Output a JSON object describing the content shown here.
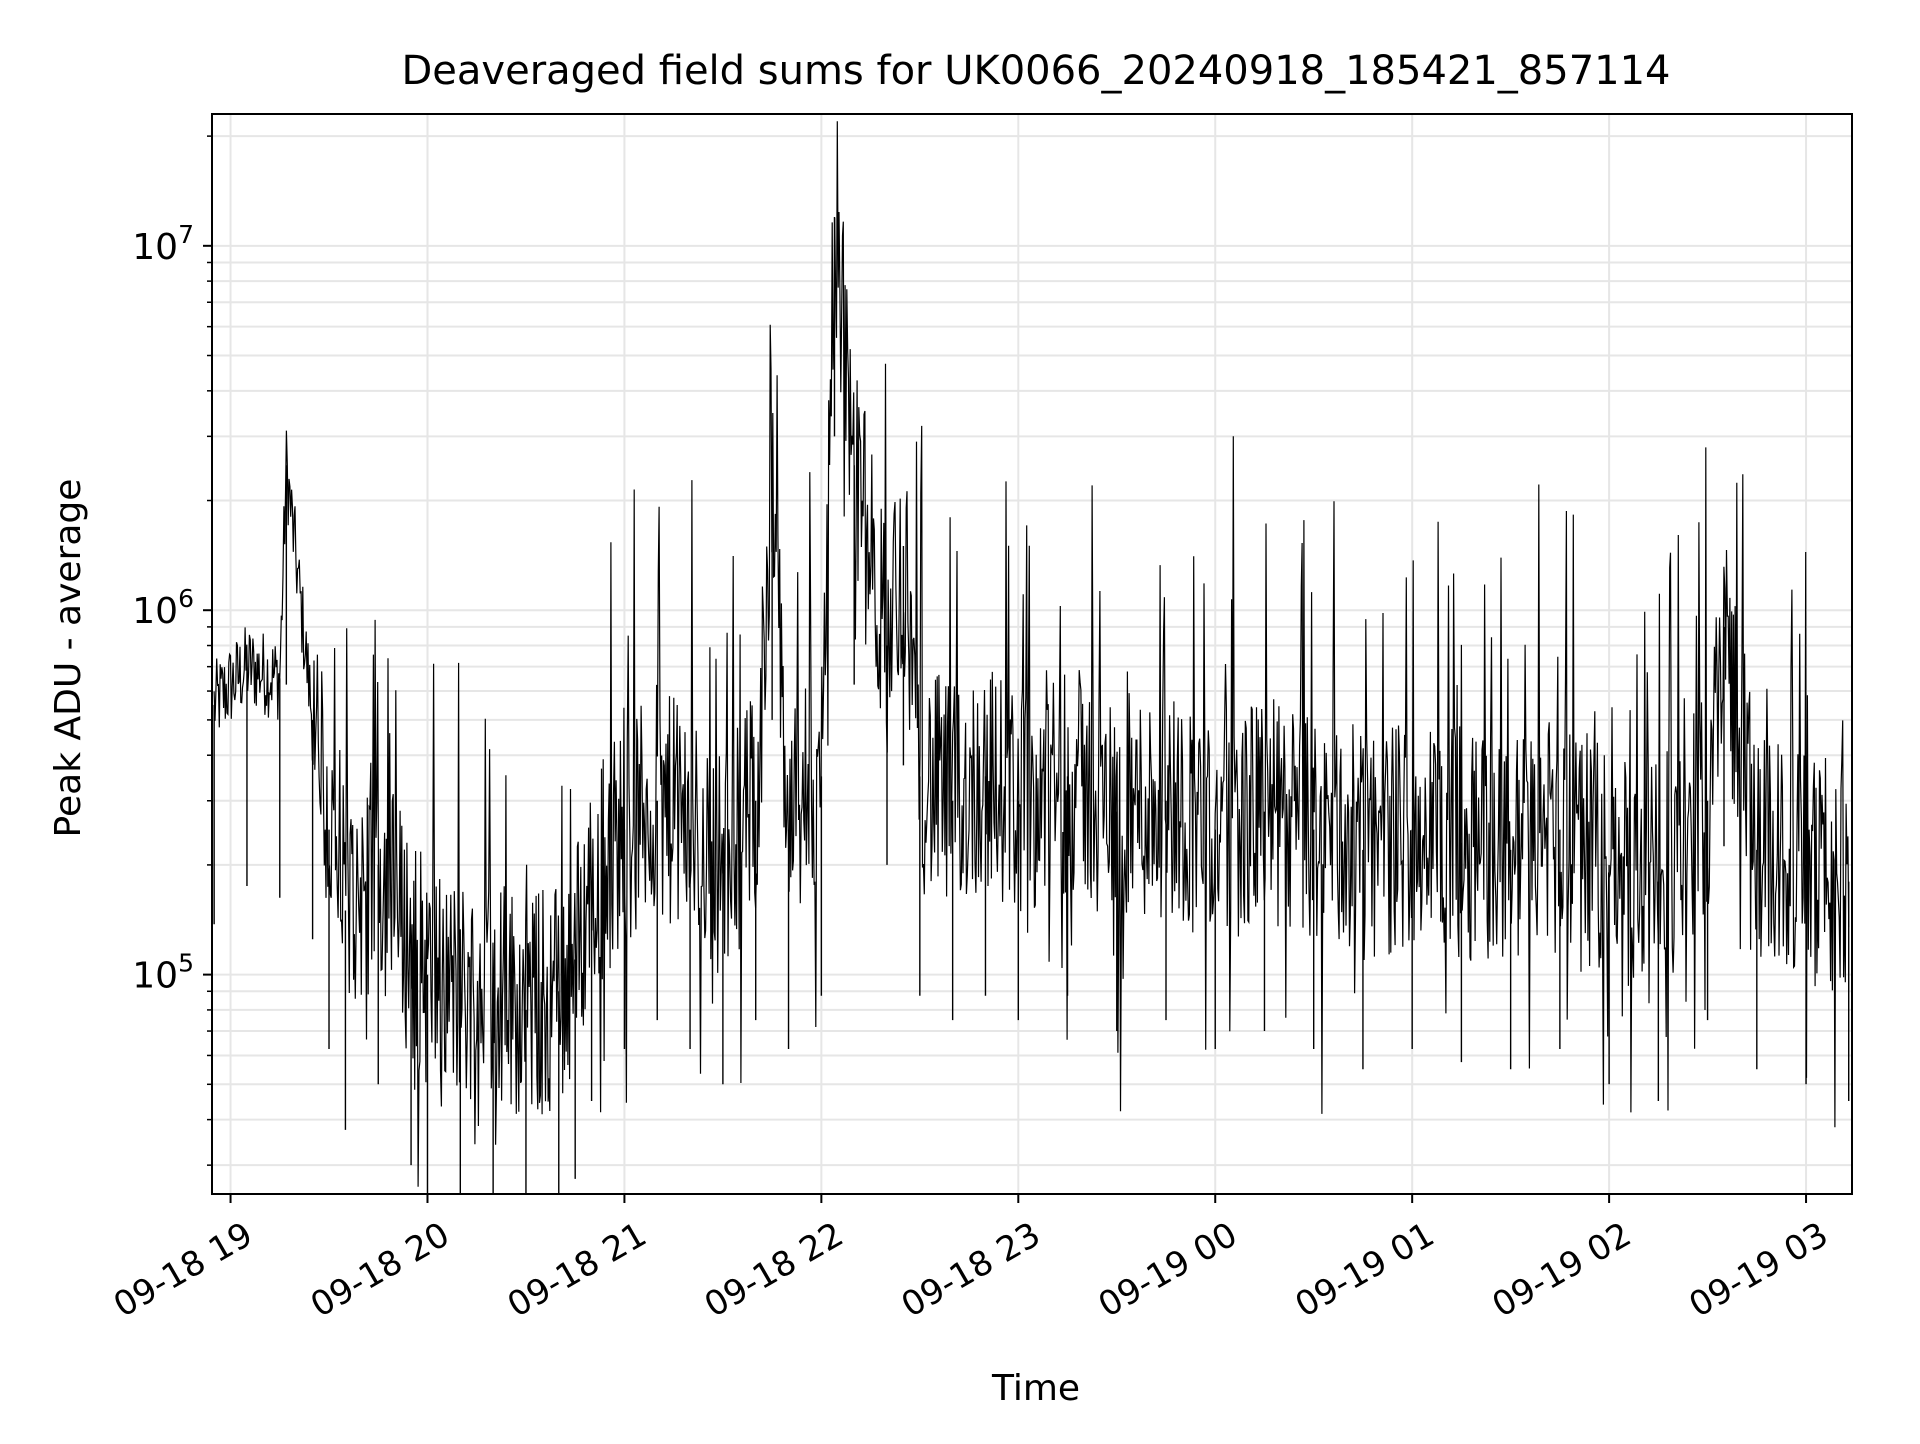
{
  "chart_data": {
    "type": "line",
    "title": "Deaveraged field sums for UK0066_20240918_185421_857114",
    "xlabel": "Time",
    "ylabel": "Peak ADU - average",
    "y_scale": "log",
    "x_range": [
      "2024-09-18 18:54:21",
      "2024-09-19 03:14:00"
    ],
    "ylim": [
      25000,
      23000000
    ],
    "grid": true,
    "line_color": "#000000",
    "grid_color": "#e6e6e6",
    "x_ticks": [
      {
        "time": "2024-09-18 19:00",
        "label": "09-18 19"
      },
      {
        "time": "2024-09-18 20:00",
        "label": "09-18 20"
      },
      {
        "time": "2024-09-18 21:00",
        "label": "09-18 21"
      },
      {
        "time": "2024-09-18 22:00",
        "label": "09-18 22"
      },
      {
        "time": "2024-09-18 23:00",
        "label": "09-18 23"
      },
      {
        "time": "2024-09-19 00:00",
        "label": "09-19 00"
      },
      {
        "time": "2024-09-19 01:00",
        "label": "09-19 01"
      },
      {
        "time": "2024-09-19 02:00",
        "label": "09-19 02"
      },
      {
        "time": "2024-09-19 03:00",
        "label": "09-19 03"
      }
    ],
    "y_ticks": [
      {
        "value": 100000,
        "base": "10",
        "exp": "5"
      },
      {
        "value": 1000000,
        "base": "10",
        "exp": "6"
      },
      {
        "value": 10000000,
        "base": "10",
        "exp": "7"
      }
    ],
    "series": [
      {
        "x": [
          "2024-09-18 18:55",
          "2024-09-18 19:05",
          "2024-09-18 19:15",
          "2024-09-18 19:17",
          "2024-09-18 19:25",
          "2024-09-18 19:30",
          "2024-09-18 19:35",
          "2024-09-18 19:45",
          "2024-09-18 19:55",
          "2024-09-18 20:00",
          "2024-09-18 20:10",
          "2024-09-18 20:20",
          "2024-09-18 20:30",
          "2024-09-18 20:40",
          "2024-09-18 20:45",
          "2024-09-18 20:50",
          "2024-09-18 21:00",
          "2024-09-18 21:10",
          "2024-09-18 21:20",
          "2024-09-18 21:30",
          "2024-09-18 21:40",
          "2024-09-18 21:45",
          "2024-09-18 21:50",
          "2024-09-18 22:00",
          "2024-09-18 22:04",
          "2024-09-18 22:10",
          "2024-09-18 22:20",
          "2024-09-18 22:25",
          "2024-09-18 22:30",
          "2024-09-18 22:40",
          "2024-09-18 22:50",
          "2024-09-18 23:00",
          "2024-09-18 23:15",
          "2024-09-18 23:30",
          "2024-09-18 23:45",
          "2024-09-19 00:00",
          "2024-09-19 00:15",
          "2024-09-19 00:30",
          "2024-09-19 00:45",
          "2024-09-19 01:00",
          "2024-09-19 01:15",
          "2024-09-19 01:30",
          "2024-09-19 01:45",
          "2024-09-19 02:00",
          "2024-09-19 02:15",
          "2024-09-19 02:30",
          "2024-09-19 02:35",
          "2024-09-19 02:45",
          "2024-09-19 03:00",
          "2024-09-19 03:13"
        ],
        "y": [
          550000,
          700000,
          650000,
          2500000,
          500000,
          250000,
          150000,
          200000,
          120000,
          100000,
          90000,
          95000,
          80000,
          90000,
          110000,
          180000,
          250000,
          300000,
          250000,
          200000,
          300000,
          2000000,
          250000,
          350000,
          12000000,
          2500000,
          800000,
          1500000,
          350000,
          300000,
          350000,
          300000,
          350000,
          280000,
          300000,
          250000,
          280000,
          250000,
          220000,
          250000,
          230000,
          220000,
          250000,
          200000,
          180000,
          300000,
          900000,
          220000,
          200000,
          180000
        ]
      }
    ]
  }
}
